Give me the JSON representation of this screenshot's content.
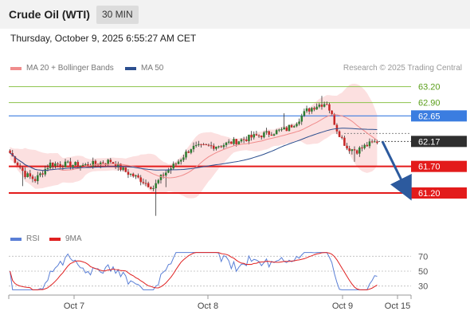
{
  "header": {
    "title": "Crude Oil (WTI)",
    "timeframe": "30 MIN",
    "datetime": "Thursday, October 9, 2025 6:55:27 AM CET"
  },
  "legend": {
    "items": [
      {
        "label": "MA 20 + Bollinger Bands",
        "color": "#f08c8c"
      },
      {
        "label": "MA 50",
        "color": "#2c4f8f"
      }
    ],
    "rsi_items": [
      {
        "label": "RSI",
        "color": "#5a7fd6"
      },
      {
        "label": "9MA",
        "color": "#e02020"
      }
    ]
  },
  "credit": "Research © 2025 Trading Central",
  "colors": {
    "up": "#2e7d32",
    "down": "#c62828",
    "resistance": "#8bc34a",
    "pivot": "#3b7de0",
    "support": "#e31b1b",
    "last": "#2f2f2f",
    "arrow": "#2c5a9e"
  },
  "chart_data": {
    "type": "candlestick",
    "ylim": [
      60.9,
      63.45
    ],
    "x_ticks": [
      "Oct 7",
      "Oct 8",
      "Oct 9",
      "Oct 15"
    ],
    "levels": [
      {
        "value": 63.2,
        "label": "63.20",
        "kind": "resistance"
      },
      {
        "value": 62.9,
        "label": "62.90",
        "kind": "resistance"
      },
      {
        "value": 62.65,
        "label": "62.65",
        "kind": "pivot"
      },
      {
        "value": 62.17,
        "label": "62.17",
        "kind": "last"
      },
      {
        "value": 61.7,
        "label": "61.70",
        "kind": "support"
      },
      {
        "value": 61.2,
        "label": "61.20",
        "kind": "support"
      }
    ],
    "forecast": {
      "from": 62.17,
      "to": 61.2
    },
    "rsi": {
      "ylim": [
        20,
        80
      ],
      "ticks": [
        70,
        50,
        30
      ],
      "levels": [
        70,
        50,
        30
      ]
    }
  }
}
